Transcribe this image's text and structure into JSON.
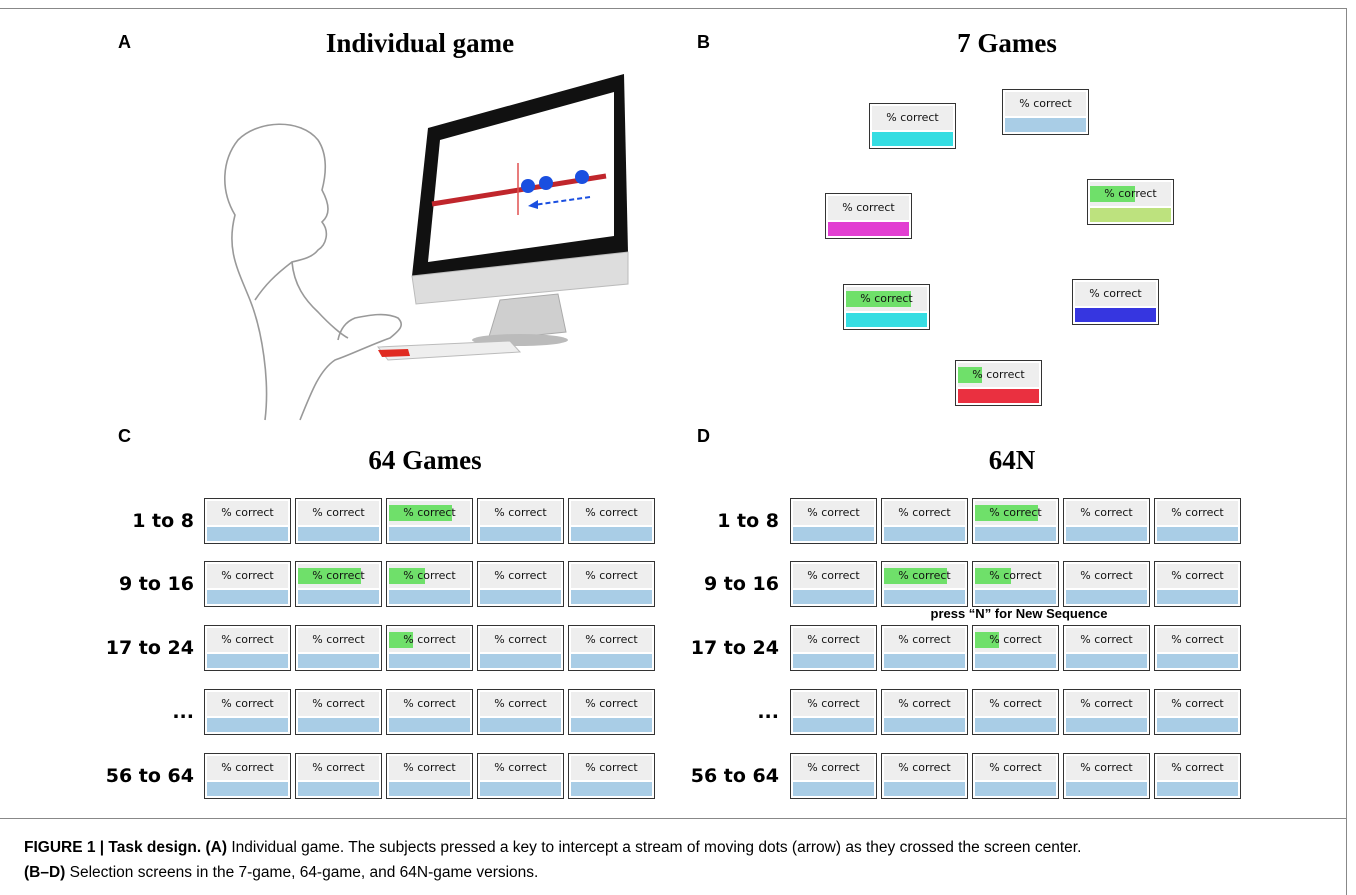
{
  "figure": {
    "panels": [
      {
        "label": "A",
        "title": "Individual game"
      },
      {
        "label": "B",
        "title": "7 Games",
        "tile_text": "% correct",
        "tiles": [
          {
            "color": "#35dde2",
            "progress": 0
          },
          {
            "color": "#a9cde6",
            "progress": 0
          },
          {
            "color": "#e23fd2",
            "progress": 0
          },
          {
            "color": "#bde27e",
            "progress": 0.55
          },
          {
            "color": "#35dde2",
            "progress": 0.8
          },
          {
            "color": "#3636e0",
            "progress": 0
          },
          {
            "color": "#ea3040",
            "progress": 0.3
          }
        ]
      },
      {
        "label": "C",
        "title": "64 Games",
        "tile_text": "% correct",
        "bar_color": "#a9cde6",
        "rows": [
          {
            "label": "1 to 8",
            "progress": [
              0,
              0,
              0.78,
              0,
              0
            ]
          },
          {
            "label": "9 to 16",
            "progress": [
              0,
              0.78,
              0.45,
              0,
              0
            ]
          },
          {
            "label": "17 to 24",
            "progress": [
              0,
              0,
              0.3,
              0,
              0
            ]
          },
          {
            "label": "...",
            "progress": [
              0,
              0,
              0,
              0,
              0
            ]
          },
          {
            "label": "56 to 64",
            "progress": [
              0,
              0,
              0,
              0,
              0
            ]
          }
        ]
      },
      {
        "label": "D",
        "title": "64N",
        "tile_text": "% correct",
        "bar_color": "#a9cde6",
        "note": "press “N” for New Sequence",
        "rows": [
          {
            "label": "1 to 8",
            "progress": [
              0,
              0,
              0.78,
              0,
              0
            ]
          },
          {
            "label": "9 to 16",
            "progress": [
              0,
              0.78,
              0.45,
              0,
              0
            ]
          },
          {
            "label": "17 to 24",
            "progress": [
              0,
              0,
              0.3,
              0,
              0
            ]
          },
          {
            "label": "...",
            "progress": [
              0,
              0,
              0,
              0,
              0
            ]
          },
          {
            "label": "56 to 64",
            "progress": [
              0,
              0,
              0,
              0,
              0
            ]
          }
        ]
      }
    ],
    "caption": {
      "figure": "FIGURE 1 | Task design.",
      "a_label": "(A)",
      "a_text": "Individual game. The subjects pressed a key to intercept a stream of moving dots (arrow) as they crossed the screen center.",
      "bd_label": "(B–D)",
      "bd_text": "Selection screens in the 7-game, 64-game, and 64N-game versions."
    }
  }
}
